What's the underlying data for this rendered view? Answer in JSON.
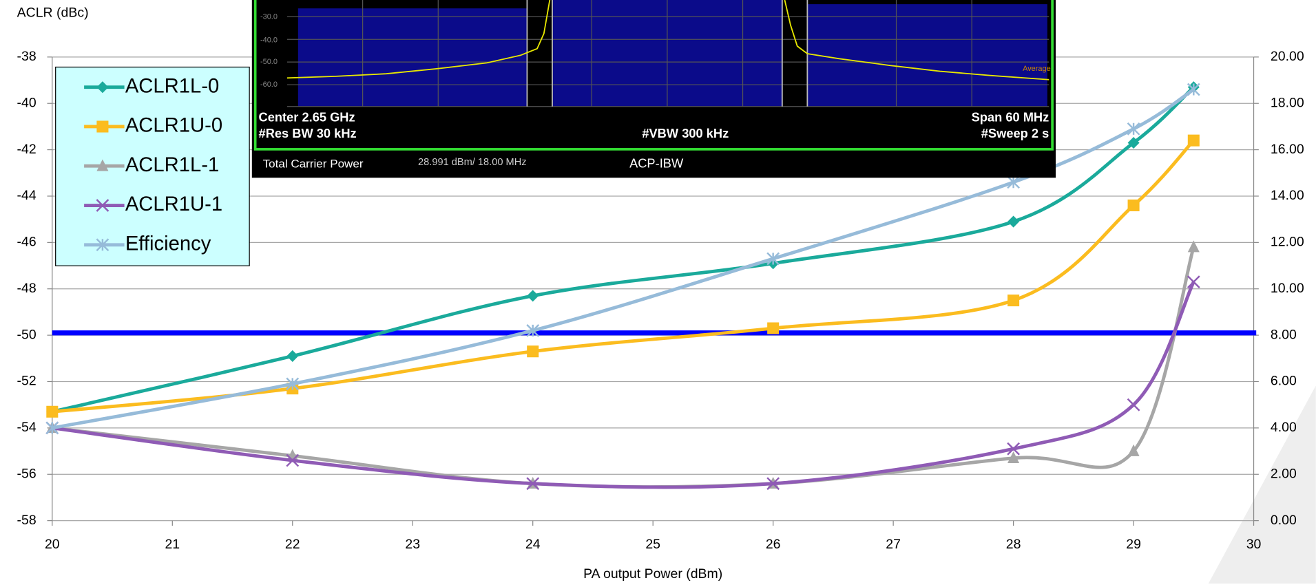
{
  "chart_data": {
    "type": "line",
    "y_label": "ACLR (dBc)",
    "x_label": "PA output Power (dBm)",
    "x": [
      20,
      22,
      24,
      26,
      28,
      29,
      29.5
    ],
    "series": [
      {
        "name": "ACLR1L-0",
        "color": "#1aaa9b",
        "marker": "diamond",
        "values": [
          -53.3,
          -50.9,
          -48.3,
          -46.9,
          -45.1,
          -41.7,
          -39.3
        ]
      },
      {
        "name": "ACLR1U-0",
        "color": "#fbbc1f",
        "marker": "square",
        "values": [
          -53.3,
          -52.3,
          -50.7,
          -49.7,
          -48.5,
          -44.4,
          -41.6
        ]
      },
      {
        "name": "ACLR1L-1",
        "color": "#a6a6a6",
        "marker": "triangle",
        "values": [
          -54.0,
          -55.2,
          -56.4,
          -56.4,
          -55.3,
          -55.0,
          -46.2
        ]
      },
      {
        "name": "ACLR1U-1",
        "color": "#8f5bb5",
        "marker": "x",
        "values": [
          -54.0,
          -55.4,
          -56.4,
          -56.4,
          -54.9,
          -53.0,
          -47.7
        ]
      },
      {
        "name": "Efficiency",
        "color": "#96bbd9",
        "marker": "asterisk",
        "axis": "y2",
        "values": [
          4.0,
          5.9,
          8.2,
          11.3,
          14.6,
          16.9,
          18.6
        ]
      }
    ],
    "reference_line": {
      "value": -49.9,
      "color": "#0000ff"
    },
    "xlim": [
      20,
      30
    ],
    "xticks": [
      20,
      21,
      22,
      23,
      24,
      25,
      26,
      27,
      28,
      29,
      30
    ],
    "ylim": [
      -58,
      -38
    ],
    "yticks": [
      -58,
      -56,
      -54,
      -52,
      -50,
      -48,
      -46,
      -44,
      -42,
      -40,
      -38
    ],
    "y2lim": [
      0,
      20
    ],
    "y2ticks": [
      {
        "value": 0,
        "label": "0.00"
      },
      {
        "value": 2,
        "label": "2.00"
      },
      {
        "value": 4,
        "label": "4.00"
      },
      {
        "value": 6,
        "label": "6.00"
      },
      {
        "value": 8,
        "label": "8.00"
      },
      {
        "value": 10,
        "label": "10.00"
      },
      {
        "value": 12,
        "label": "12.00"
      },
      {
        "value": 14,
        "label": "14.00"
      },
      {
        "value": 16,
        "label": "16.00"
      },
      {
        "value": 18,
        "label": "18.00"
      },
      {
        "value": 20,
        "label": "20.00"
      }
    ],
    "grid": true,
    "legend": "top-left"
  },
  "inset": {
    "scale_labels": [
      "-30.0",
      "-40.0",
      "-50.0",
      "-60.0"
    ],
    "trace_mode": "Average",
    "center": "Center  2.65 GHz",
    "res_bw": "#Res BW  30 kHz",
    "vbw": "#VBW  300 kHz",
    "span": "Span 60 MHz",
    "sweep": "#Sweep  2 s",
    "measure_name": "Total Carrier Power",
    "measure_value": "28.991 dBm/ 18.00 MHz",
    "mode": "ACP-IBW"
  }
}
